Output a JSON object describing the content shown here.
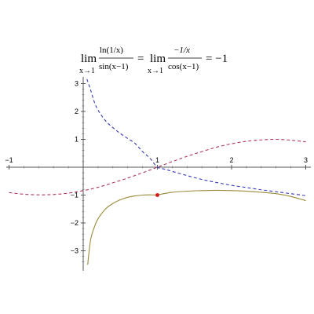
{
  "chart_data": {
    "type": "line",
    "title": "",
    "xlabel": "",
    "ylabel": "",
    "xlim": [
      -1,
      3
    ],
    "ylim": [
      -3.6,
      3.4
    ],
    "grid": false,
    "formula": {
      "lim1": "lim",
      "sub1": "x→1",
      "num1": "ln(1/x)",
      "den1": "sin(x−1)",
      "eq1": "=",
      "lim2": "lim",
      "sub2": "x→1",
      "num2": "−1/x",
      "den2": "cos(x−1)",
      "eq2": "= −1"
    },
    "x_ticks": [
      {
        "value": -1,
        "label": "−1"
      },
      {
        "value": 1,
        "label": "1"
      },
      {
        "value": 2,
        "label": "2"
      },
      {
        "value": 3,
        "label": "3"
      }
    ],
    "y_ticks": [
      {
        "value": 3,
        "label": "3"
      },
      {
        "value": 2,
        "label": "2"
      },
      {
        "value": 1,
        "label": "1"
      },
      {
        "value": -1,
        "label": "−1"
      },
      {
        "value": -2,
        "label": "−2"
      },
      {
        "value": -3,
        "label": "−3"
      }
    ],
    "series": [
      {
        "color": "#3a3ab8",
        "dash": true,
        "x": [
          0.05,
          0.1,
          0.15,
          0.2,
          0.3,
          0.4,
          0.5,
          0.6,
          0.7,
          0.8,
          0.9,
          1.0,
          1.1,
          1.2,
          1.4,
          1.6,
          1.8,
          2.0,
          2.2,
          2.4,
          2.6,
          2.8,
          3.0
        ],
        "y": [
          3.16,
          2.77,
          2.34,
          2.05,
          1.67,
          1.42,
          1.21,
          1.03,
          0.85,
          0.56,
          0.32,
          0.0,
          -0.07,
          -0.15,
          -0.3,
          -0.44,
          -0.55,
          -0.65,
          -0.73,
          -0.81,
          -0.88,
          -0.95,
          -1.02
        ]
      },
      {
        "color": "#b03a5a",
        "dash": true,
        "x": [
          -1.0,
          -0.8,
          -0.6,
          -0.4,
          -0.2,
          0.0,
          0.2,
          0.4,
          0.6,
          0.8,
          1.0,
          1.2,
          1.4,
          1.6,
          1.8,
          2.0,
          2.2,
          2.4,
          2.6,
          2.8,
          3.0
        ],
        "y": [
          -0.91,
          -0.97,
          -0.99,
          -0.98,
          -0.93,
          -0.84,
          -0.72,
          -0.56,
          -0.39,
          -0.2,
          0.0,
          0.2,
          0.39,
          0.56,
          0.72,
          0.84,
          0.93,
          0.98,
          1.0,
          0.97,
          0.91
        ]
      },
      {
        "color": "#9a8a3a",
        "dash": false,
        "x": [
          0.06,
          0.1,
          0.15,
          0.2,
          0.3,
          0.4,
          0.5,
          0.6,
          0.7,
          0.8,
          0.9,
          1.0,
          1.2,
          1.4,
          1.6,
          1.8,
          2.0,
          2.2,
          2.4,
          2.6,
          2.8,
          3.0
        ],
        "y": [
          -3.5,
          -2.6,
          -2.15,
          -1.85,
          -1.5,
          -1.3,
          -1.17,
          -1.08,
          -1.03,
          -1.0,
          -0.99,
          -0.99,
          -0.9,
          -0.86,
          -0.84,
          -0.83,
          -0.84,
          -0.86,
          -0.9,
          -0.95,
          -1.05,
          -1.2
        ]
      }
    ],
    "points": [
      {
        "x": 1,
        "y": -1,
        "color": "#d42020"
      }
    ]
  }
}
